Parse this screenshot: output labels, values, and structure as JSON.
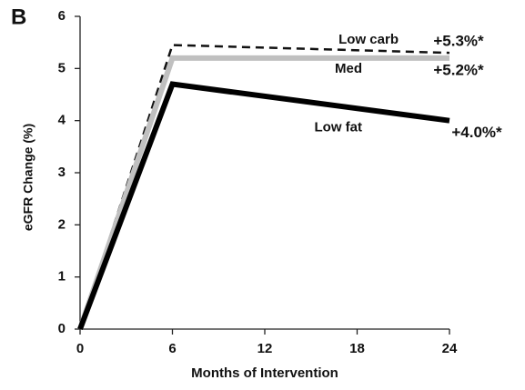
{
  "chart_data": {
    "type": "line",
    "panel_label": "B",
    "xlabel": "Months of Intervention",
    "ylabel": "eGFR Change  (%)",
    "x": [
      0,
      6,
      24
    ],
    "xlim": [
      0,
      24
    ],
    "xticks": [
      0,
      6,
      12,
      18,
      24
    ],
    "ylim": [
      0,
      6
    ],
    "yticks": [
      0,
      1,
      2,
      3,
      4,
      5,
      6
    ],
    "grid": false,
    "series": [
      {
        "name": "Low carb",
        "color": "#111111",
        "line_style": "dashed",
        "values": [
          0,
          5.45,
          5.3
        ],
        "value_labels": [
          null,
          null,
          "+5.3%*"
        ]
      },
      {
        "name": "Med",
        "color": "#c0c0c0",
        "line_style": "solid",
        "values": [
          0,
          5.2,
          5.2
        ],
        "value_labels": [
          null,
          null,
          "+5.2%*"
        ]
      },
      {
        "name": "Low fat",
        "color": "#000000",
        "line_style": "solid",
        "values": [
          0,
          4.7,
          4.0
        ],
        "value_labels": [
          null,
          null,
          "+4.0%*"
        ]
      }
    ]
  }
}
